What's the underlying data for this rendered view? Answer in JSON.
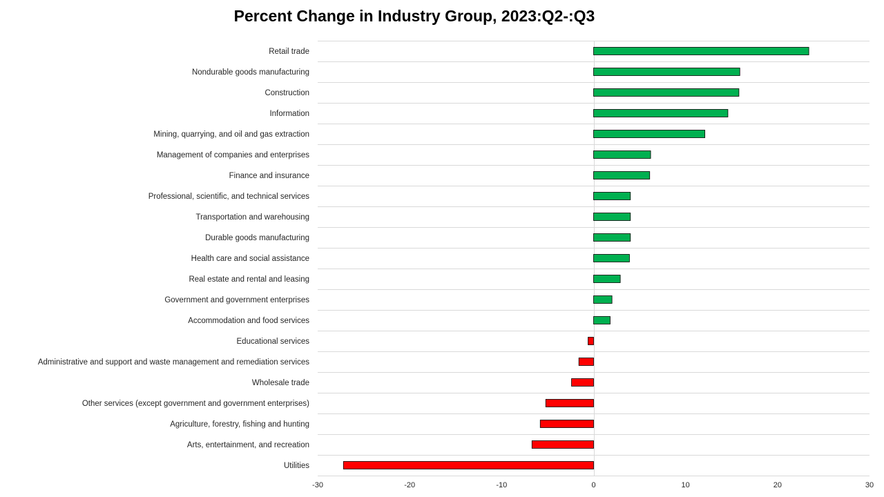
{
  "chart_data": {
    "type": "bar",
    "orientation": "horizontal",
    "title": "Percent Change in Industry Group, 2023:Q2-:Q3",
    "xlabel": "",
    "ylabel": "",
    "xlim": [
      -30,
      30
    ],
    "x_ticks": [
      "-30",
      "-20",
      "-10",
      "0",
      "10",
      "20",
      "30"
    ],
    "grid": "horizontal",
    "legend": "none",
    "colors": {
      "positive": "#00b050",
      "negative": "#ff0000",
      "bar_edge": "#000000",
      "grid": "#d9d9d9"
    },
    "categories": [
      "Retail trade",
      "Nondurable goods manufacturing",
      "Construction",
      "Information",
      "Mining, quarrying, and oil and gas extraction",
      "Management of companies and enterprises",
      "Finance and insurance",
      "Professional, scientific, and technical services",
      "Transportation and warehousing",
      "Durable goods manufacturing",
      "Health care and social assistance",
      "Real estate and rental and leasing",
      "Government and government enterprises",
      "Accommodation and food services",
      "Educational services",
      "Administrative and support and waste management and remediation services",
      "Wholesale trade",
      "Other services (except government and government enterprises)",
      "Agriculture, forestry, fishing and hunting",
      "Arts, entertainment, and recreation",
      "Utilities"
    ],
    "values": [
      23.4,
      15.9,
      15.8,
      14.6,
      12.1,
      6.2,
      6.1,
      4.0,
      4.0,
      4.0,
      3.9,
      2.9,
      2.0,
      1.8,
      -0.6,
      -1.6,
      -2.4,
      -5.2,
      -5.8,
      -6.7,
      -27.2
    ]
  }
}
